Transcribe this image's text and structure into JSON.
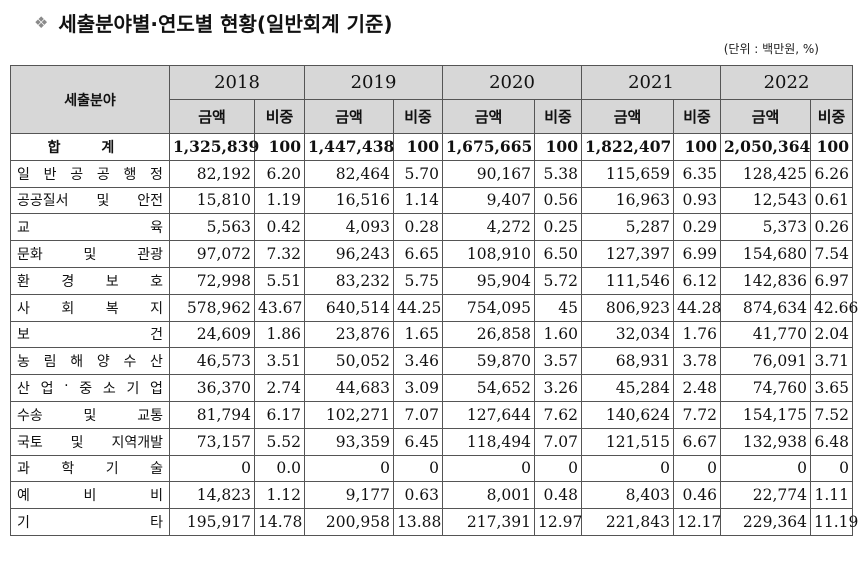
{
  "title": "세출분야별·연도별 현황(일반회계 기준)",
  "unit": "(단위 : 백만원, %)",
  "header": {
    "category": "세출분야",
    "years": [
      "2018",
      "2019",
      "2020",
      "2021",
      "2022"
    ],
    "amount_label": "금액",
    "ratio_label": "비중"
  },
  "rows": [
    {
      "label": "합 계",
      "cells": [
        "1,325,839",
        "100",
        "1,447,438",
        "100",
        "1,675,665",
        "100",
        "1,822,407",
        "100",
        "2,050,364",
        "100"
      ]
    },
    {
      "label": "일반공공행정",
      "cells": [
        "82,192",
        "6.20",
        "82,464",
        "5.70",
        "90,167",
        "5.38",
        "115,659",
        "6.35",
        "128,425",
        "6.26"
      ]
    },
    {
      "label": "공공질서 및 안전",
      "cells": [
        "15,810",
        "1.19",
        "16,516",
        "1.14",
        "9,407",
        "0.56",
        "16,963",
        "0.93",
        "12,543",
        "0.61"
      ]
    },
    {
      "label": "교육",
      "cells": [
        "5,563",
        "0.42",
        "4,093",
        "0.28",
        "4,272",
        "0.25",
        "5,287",
        "0.29",
        "5,373",
        "0.26"
      ]
    },
    {
      "label": "문화 및 관광",
      "cells": [
        "97,072",
        "7.32",
        "96,243",
        "6.65",
        "108,910",
        "6.50",
        "127,397",
        "6.99",
        "154,680",
        "7.54"
      ]
    },
    {
      "label": "환경보호",
      "cells": [
        "72,998",
        "5.51",
        "83,232",
        "5.75",
        "95,904",
        "5.72",
        "111,546",
        "6.12",
        "142,836",
        "6.97"
      ]
    },
    {
      "label": "사회복지",
      "cells": [
        "578,962",
        "43.67",
        "640,514",
        "44.25",
        "754,095",
        "45",
        "806,923",
        "44.28",
        "874,634",
        "42.66"
      ]
    },
    {
      "label": "보건",
      "cells": [
        "24,609",
        "1.86",
        "23,876",
        "1.65",
        "26,858",
        "1.60",
        "32,034",
        "1.76",
        "41,770",
        "2.04"
      ]
    },
    {
      "label": "농림해양수산",
      "cells": [
        "46,573",
        "3.51",
        "50,052",
        "3.46",
        "59,870",
        "3.57",
        "68,931",
        "3.78",
        "76,091",
        "3.71"
      ]
    },
    {
      "label": "산업·중소기업",
      "cells": [
        "36,370",
        "2.74",
        "44,683",
        "3.09",
        "54,652",
        "3.26",
        "45,284",
        "2.48",
        "74,760",
        "3.65"
      ]
    },
    {
      "label": "수송 및 교통",
      "cells": [
        "81,794",
        "6.17",
        "102,271",
        "7.07",
        "127,644",
        "7.62",
        "140,624",
        "7.72",
        "154,175",
        "7.52"
      ]
    },
    {
      "label": "국토 및 지역개발",
      "cells": [
        "73,157",
        "5.52",
        "93,359",
        "6.45",
        "118,494",
        "7.07",
        "121,515",
        "6.67",
        "132,938",
        "6.48"
      ]
    },
    {
      "label": "과학기술",
      "cells": [
        "0",
        "0.0",
        "0",
        "0",
        "0",
        "0",
        "0",
        "0",
        "0",
        "0"
      ]
    },
    {
      "label": "예비비",
      "cells": [
        "14,823",
        "1.12",
        "9,177",
        "0.63",
        "8,001",
        "0.48",
        "8,403",
        "0.46",
        "22,774",
        "1.11"
      ]
    },
    {
      "label": "기타",
      "cells": [
        "195,917",
        "14.78",
        "200,958",
        "13.88",
        "217,391",
        "12.97",
        "221,843",
        "12.17",
        "229,364",
        "11.19"
      ]
    }
  ]
}
